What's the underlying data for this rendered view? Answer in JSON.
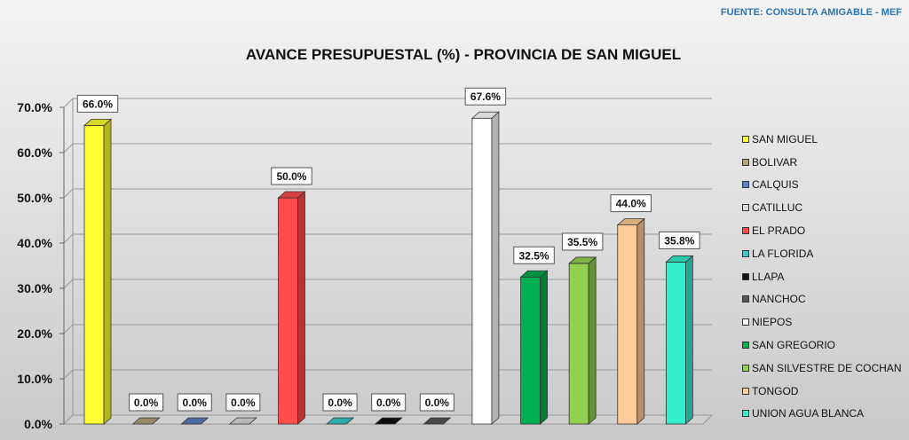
{
  "header": {
    "source": "FUENTE:  CONSULTA AMIGABLE  - MEF"
  },
  "chart_data": {
    "type": "bar",
    "title": "AVANCE PRESUPUESTAL (%) - PROVINCIA DE SAN MIGUEL",
    "xlabel": "",
    "ylabel": "",
    "ylim": [
      0,
      70
    ],
    "yticks": [
      "0.0%",
      "10.0%",
      "20.0%",
      "30.0%",
      "40.0%",
      "50.0%",
      "60.0%",
      "70.0%"
    ],
    "grid": true,
    "legend_position": "right",
    "categories": [
      "SAN MIGUEL",
      "BOLIVAR",
      "CALQUIS",
      "CATILLUC",
      "EL PRADO",
      "LA FLORIDA",
      "LLAPA",
      "NANCHOC",
      "NIEPOS",
      "SAN GREGORIO",
      "SAN SILVESTRE DE COCHAN",
      "TONGOD",
      "UNION AGUA BLANCA"
    ],
    "values": [
      66.0,
      0.0,
      0.0,
      0.0,
      50.0,
      0.0,
      0.0,
      0.0,
      67.6,
      32.5,
      35.5,
      44.0,
      35.8
    ],
    "data_labels": [
      "66.0%",
      "0.0%",
      "0.0%",
      "0.0%",
      "50.0%",
      "0.0%",
      "0.0%",
      "0.0%",
      "67.6%",
      "32.5%",
      "35.5%",
      "44.0%",
      "35.8%"
    ],
    "colors": [
      "#ffff33",
      "#b3a27a",
      "#5b7fbf",
      "#d9d9d9",
      "#ff4d4d",
      "#33cccc",
      "#111111",
      "#555555",
      "#ffffff",
      "#00b050",
      "#92d050",
      "#ffcc99",
      "#33eecc"
    ]
  }
}
